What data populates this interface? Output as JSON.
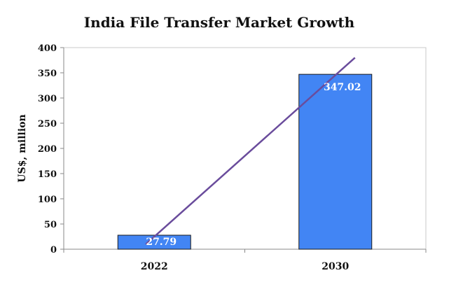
{
  "chart_data": {
    "type": "bar",
    "title": "India File Transfer Market Growth",
    "ylabel": "US$, million",
    "xlabel": "",
    "categories": [
      "2022",
      "2030"
    ],
    "values": [
      27.79,
      347.02
    ],
    "data_labels": [
      "27.79",
      "347.02"
    ],
    "ylim": [
      0,
      400
    ],
    "yticks": [
      0,
      50,
      100,
      150,
      200,
      250,
      300,
      350,
      400
    ],
    "ytick_labels": [
      "0",
      "50",
      "100",
      "150",
      "200",
      "250",
      "300",
      "350",
      "400"
    ],
    "bar_color": "#4285f4",
    "trend_line": {
      "color": "#6a4c9c",
      "start": [
        2022,
        10
      ],
      "end": [
        2030,
        380
      ]
    },
    "grid": false,
    "legend": "none"
  }
}
